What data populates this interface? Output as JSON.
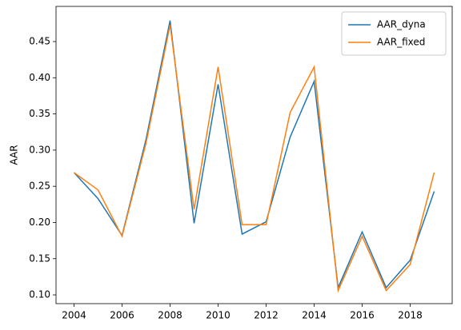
{
  "chart_data": {
    "type": "line",
    "ylabel": "AAR",
    "x": [
      2004,
      2005,
      2006,
      2007,
      2008,
      2009,
      2010,
      2011,
      2012,
      2013,
      2014,
      2015,
      2016,
      2017,
      2018,
      2019
    ],
    "series": [
      {
        "name": "AAR_dyna",
        "color": "#1f77b4",
        "values": [
          0.269,
          0.233,
          0.182,
          0.315,
          0.479,
          0.199,
          0.391,
          0.184,
          0.201,
          0.318,
          0.395,
          0.11,
          0.187,
          0.11,
          0.148,
          0.243
        ]
      },
      {
        "name": "AAR_fixed",
        "color": "#ff7f0e",
        "values": [
          0.269,
          0.245,
          0.181,
          0.31,
          0.473,
          0.218,
          0.415,
          0.197,
          0.197,
          0.352,
          0.415,
          0.106,
          0.181,
          0.106,
          0.142,
          0.269
        ]
      }
    ],
    "xlim": [
      2003.25,
      2019.75
    ],
    "xticks": [
      2004,
      2006,
      2008,
      2010,
      2012,
      2014,
      2016,
      2018
    ],
    "ylim": [
      0.0879,
      0.4986
    ],
    "yticks": [
      {
        "value": 0.1,
        "label": "0.10"
      },
      {
        "value": 0.15,
        "label": "0.15"
      },
      {
        "value": 0.2,
        "label": "0.20"
      },
      {
        "value": 0.25,
        "label": "0.25"
      },
      {
        "value": 0.3,
        "label": "0.30"
      },
      {
        "value": 0.35,
        "label": "0.35"
      },
      {
        "value": 0.4,
        "label": "0.40"
      },
      {
        "value": 0.45,
        "label": "0.45"
      }
    ],
    "legend": "upper right",
    "grid": false
  }
}
